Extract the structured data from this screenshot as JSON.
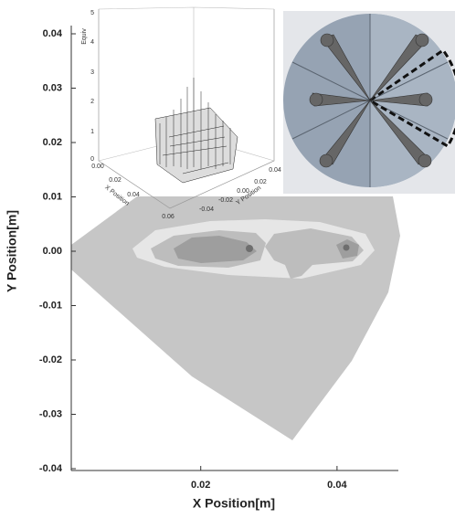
{
  "chart_data": {
    "type": "contour",
    "x_label": "X Position[m]",
    "y_label": "Y Position[m]",
    "xlim": [
      0.001,
      0.049
    ],
    "ylim": [
      -0.04,
      0.04
    ],
    "xticks": [
      0.02,
      0.04
    ],
    "yticks": [
      0.04,
      0.03,
      0.02,
      0.01,
      {
        "value": 0,
        "label": "0.00"
      },
      -0.01,
      -0.02,
      -0.03,
      -0.04
    ]
  },
  "inset": {
    "z_label": "Equiv",
    "x_label": "X Position",
    "y_label": "Y Position",
    "z_ticks": [
      "5",
      "4",
      "3",
      "2",
      "1",
      "0"
    ],
    "x_ticks": [
      "0.00",
      "0.02",
      "0.04",
      "0.06"
    ],
    "y_ticks": [
      "0.04",
      "0.02",
      "0.00",
      "-0.02",
      "-0.04"
    ]
  }
}
